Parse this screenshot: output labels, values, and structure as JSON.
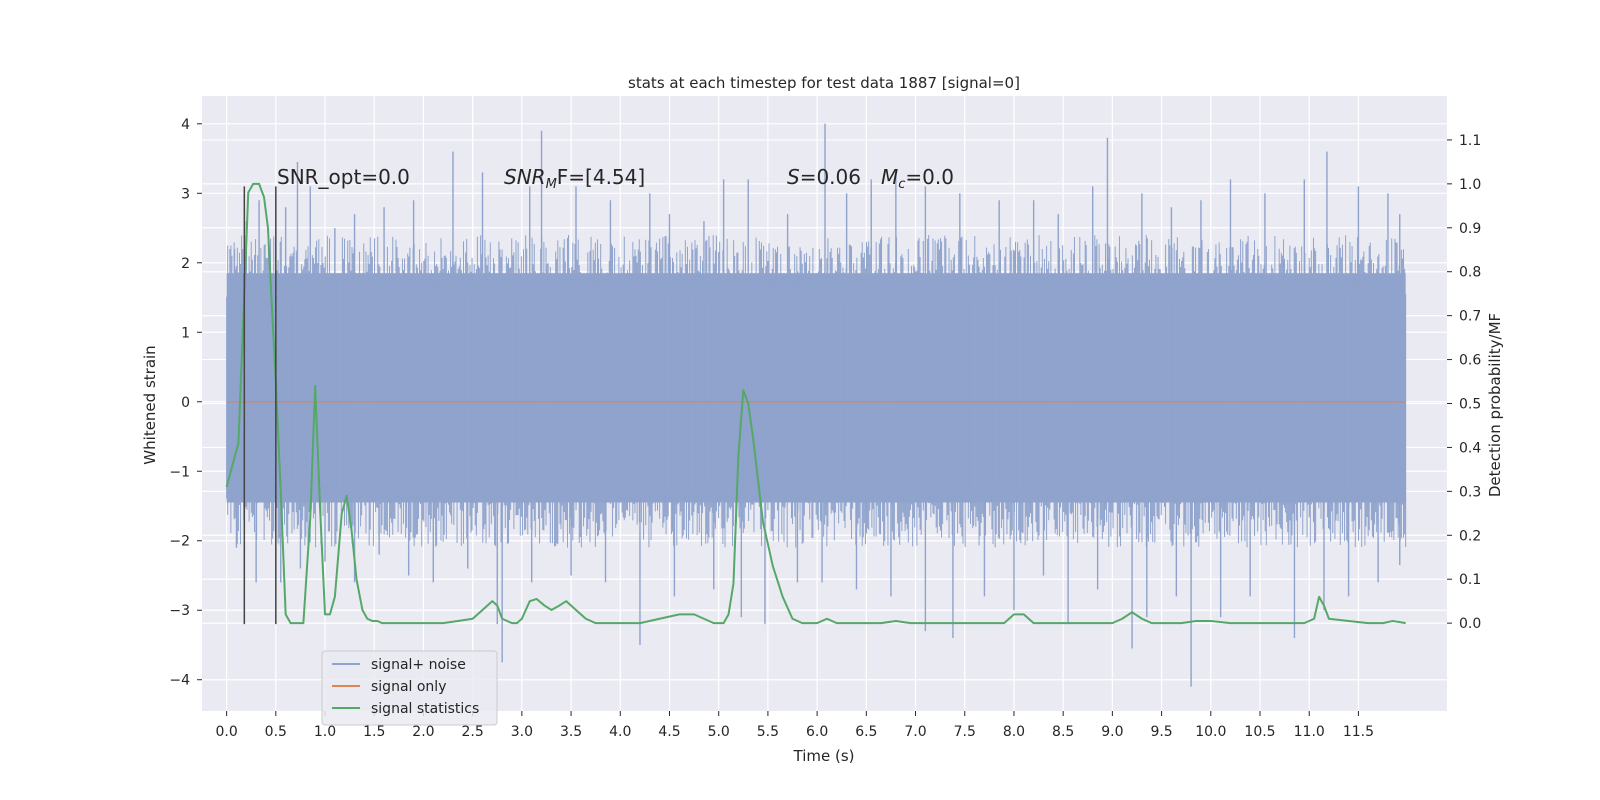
{
  "chart_data": {
    "type": "line",
    "title": "stats at each timestep for test data 1887 [signal=0]",
    "xlabel": "Time (s)",
    "ylabel": "Whitened strain",
    "y2label": "Detection probability/MF",
    "xlim": [
      -0.25,
      12.4
    ],
    "ylim": [
      -4.45,
      4.4
    ],
    "y2lim": [
      -0.2,
      1.2
    ],
    "x_ticks": [
      "0.0",
      "0.5",
      "1.0",
      "1.5",
      "2.0",
      "2.5",
      "3.0",
      "3.5",
      "4.0",
      "4.5",
      "5.0",
      "5.5",
      "6.0",
      "6.5",
      "7.0",
      "7.5",
      "8.0",
      "8.5",
      "9.0",
      "9.5",
      "10.0",
      "10.5",
      "11.0",
      "11.5"
    ],
    "y_ticks": [
      "−4",
      "−3",
      "−2",
      "−1",
      "0",
      "1",
      "2",
      "3",
      "4"
    ],
    "y2_ticks": [
      "0.0",
      "0.1",
      "0.2",
      "0.3",
      "0.4",
      "0.5",
      "0.6",
      "0.7",
      "0.8",
      "0.9",
      "1.0",
      "1.1"
    ],
    "grid": true,
    "legend": "lower-left",
    "annotations": {
      "snr_opt": "SNR_opt=0.0",
      "snr_mf_sym": "SNR",
      "snr_mf_sub": "M",
      "snr_mf_rest": "F=[4.54]",
      "s_sym": "S",
      "s_rest": "=0.06",
      "mc_sym": "M",
      "mc_sub": "c",
      "mc_rest": "=0.0"
    },
    "vlines": [
      0.18,
      0.5
    ],
    "colors": {
      "noise": "#8fa3cc",
      "signal": "#dd8452",
      "stats": "#55a868",
      "vline": "#444444",
      "background": "#eaeaf2",
      "grid": "#ffffff"
    },
    "series": [
      {
        "name": "signal+ noise",
        "axis": "left",
        "envelope_upper_core": 1.85,
        "envelope_lower_core": -1.45,
        "peaks_up": [
          [
            0.08,
            2.2
          ],
          [
            0.2,
            2.6
          ],
          [
            0.33,
            2.9
          ],
          [
            0.5,
            2.3
          ],
          [
            0.6,
            2.8
          ],
          [
            0.72,
            3.45
          ],
          [
            0.85,
            3.1
          ],
          [
            1.1,
            2.5
          ],
          [
            1.3,
            2.7
          ],
          [
            1.6,
            2.8
          ],
          [
            1.9,
            2.9
          ],
          [
            2.3,
            3.6
          ],
          [
            2.6,
            3.3
          ],
          [
            3.08,
            3.1
          ],
          [
            3.2,
            3.9
          ],
          [
            3.55,
            3.1
          ],
          [
            3.9,
            2.9
          ],
          [
            4.3,
            3.0
          ],
          [
            4.5,
            2.7
          ],
          [
            4.85,
            2.6
          ],
          [
            5.05,
            3.2
          ],
          [
            5.3,
            3.2
          ],
          [
            5.7,
            2.7
          ],
          [
            6.08,
            4.0
          ],
          [
            6.3,
            3.0
          ],
          [
            6.55,
            3.2
          ],
          [
            6.8,
            3.3
          ],
          [
            7.1,
            3.1
          ],
          [
            7.45,
            3.0
          ],
          [
            7.85,
            2.9
          ],
          [
            8.2,
            2.9
          ],
          [
            8.45,
            2.7
          ],
          [
            8.8,
            3.1
          ],
          [
            8.95,
            3.8
          ],
          [
            9.3,
            3.0
          ],
          [
            9.6,
            2.8
          ],
          [
            9.9,
            2.9
          ],
          [
            10.2,
            3.2
          ],
          [
            10.55,
            3.0
          ],
          [
            10.95,
            3.2
          ],
          [
            11.18,
            3.6
          ],
          [
            11.5,
            3.1
          ],
          [
            11.8,
            3.0
          ],
          [
            11.92,
            2.7
          ]
        ],
        "peaks_down": [
          [
            0.1,
            -2.1
          ],
          [
            0.3,
            -2.6
          ],
          [
            0.55,
            -2.6
          ],
          [
            0.75,
            -2.4
          ],
          [
            1.0,
            -2.3
          ],
          [
            1.3,
            -2.6
          ],
          [
            1.55,
            -2.2
          ],
          [
            1.85,
            -2.5
          ],
          [
            2.1,
            -2.6
          ],
          [
            2.45,
            -2.4
          ],
          [
            2.75,
            -3.2
          ],
          [
            2.8,
            -3.75
          ],
          [
            3.1,
            -2.6
          ],
          [
            3.5,
            -2.5
          ],
          [
            3.85,
            -2.6
          ],
          [
            4.2,
            -3.5
          ],
          [
            4.55,
            -2.8
          ],
          [
            4.95,
            -2.7
          ],
          [
            5.23,
            -3.1
          ],
          [
            5.47,
            -3.2
          ],
          [
            5.8,
            -2.6
          ],
          [
            6.05,
            -2.6
          ],
          [
            6.4,
            -2.7
          ],
          [
            6.75,
            -2.8
          ],
          [
            7.1,
            -3.3
          ],
          [
            7.38,
            -3.4
          ],
          [
            7.7,
            -2.8
          ],
          [
            8.0,
            -3.0
          ],
          [
            8.3,
            -2.5
          ],
          [
            8.55,
            -3.2
          ],
          [
            8.85,
            -2.7
          ],
          [
            9.2,
            -3.55
          ],
          [
            9.35,
            -3.1
          ],
          [
            9.65,
            -2.8
          ],
          [
            9.8,
            -4.1
          ],
          [
            10.1,
            -3.1
          ],
          [
            10.4,
            -2.8
          ],
          [
            10.85,
            -3.4
          ],
          [
            11.15,
            -3.0
          ],
          [
            11.4,
            -2.8
          ],
          [
            11.7,
            -2.6
          ],
          [
            11.92,
            -2.35
          ]
        ]
      },
      {
        "name": "signal only",
        "axis": "left",
        "x": [
          0.0,
          11.98
        ],
        "y": [
          0.0,
          0.0
        ]
      },
      {
        "name": "signal statistics",
        "axis": "right",
        "x": [
          0.0,
          0.12,
          0.18,
          0.22,
          0.27,
          0.33,
          0.38,
          0.42,
          0.46,
          0.5,
          0.55,
          0.6,
          0.65,
          0.7,
          0.78,
          0.85,
          0.9,
          0.95,
          1.0,
          1.05,
          1.1,
          1.17,
          1.22,
          1.27,
          1.32,
          1.38,
          1.43,
          1.48,
          1.53,
          1.58,
          1.65,
          1.75,
          1.9,
          2.0,
          2.2,
          2.35,
          2.5,
          2.6,
          2.7,
          2.75,
          2.8,
          2.9,
          2.95,
          3.0,
          3.08,
          3.15,
          3.23,
          3.3,
          3.38,
          3.45,
          3.55,
          3.65,
          3.75,
          3.85,
          4.0,
          4.2,
          4.4,
          4.6,
          4.75,
          4.85,
          4.95,
          5.05,
          5.1,
          5.15,
          5.2,
          5.25,
          5.3,
          5.35,
          5.45,
          5.55,
          5.65,
          5.75,
          5.85,
          6.0,
          6.1,
          6.2,
          6.35,
          6.5,
          6.65,
          6.8,
          6.95,
          7.1,
          7.3,
          7.5,
          7.7,
          7.9,
          8.0,
          8.1,
          8.2,
          8.4,
          8.6,
          8.8,
          9.0,
          9.1,
          9.2,
          9.3,
          9.4,
          9.5,
          9.7,
          9.85,
          10.0,
          10.2,
          10.4,
          10.6,
          10.8,
          10.95,
          11.05,
          11.1,
          11.15,
          11.2,
          11.4,
          11.6,
          11.75,
          11.85,
          11.98
        ],
        "y": [
          0.31,
          0.41,
          0.75,
          0.98,
          1.0,
          1.0,
          0.97,
          0.9,
          0.72,
          0.55,
          0.3,
          0.02,
          0.0,
          0.0,
          0.0,
          0.24,
          0.54,
          0.26,
          0.02,
          0.02,
          0.06,
          0.25,
          0.29,
          0.21,
          0.1,
          0.03,
          0.01,
          0.005,
          0.005,
          0.0,
          0.0,
          0.0,
          0.0,
          0.0,
          0.0,
          0.005,
          0.01,
          0.03,
          0.05,
          0.04,
          0.01,
          0.0,
          0.0,
          0.01,
          0.05,
          0.055,
          0.04,
          0.03,
          0.04,
          0.05,
          0.03,
          0.01,
          0.0,
          0.0,
          0.0,
          0.0,
          0.01,
          0.02,
          0.02,
          0.01,
          0.0,
          0.0,
          0.02,
          0.09,
          0.38,
          0.53,
          0.5,
          0.42,
          0.23,
          0.13,
          0.06,
          0.01,
          0.0,
          0.0,
          0.01,
          0.0,
          0.0,
          0.0,
          0.0,
          0.005,
          0.0,
          0.0,
          0.0,
          0.0,
          0.0,
          0.0,
          0.02,
          0.02,
          0.0,
          0.0,
          0.0,
          0.0,
          0.0,
          0.01,
          0.025,
          0.01,
          0.0,
          0.0,
          0.0,
          0.005,
          0.005,
          0.0,
          0.0,
          0.0,
          0.0,
          0.0,
          0.01,
          0.06,
          0.04,
          0.01,
          0.005,
          0.0,
          0.0,
          0.005,
          0.0
        ]
      }
    ]
  }
}
